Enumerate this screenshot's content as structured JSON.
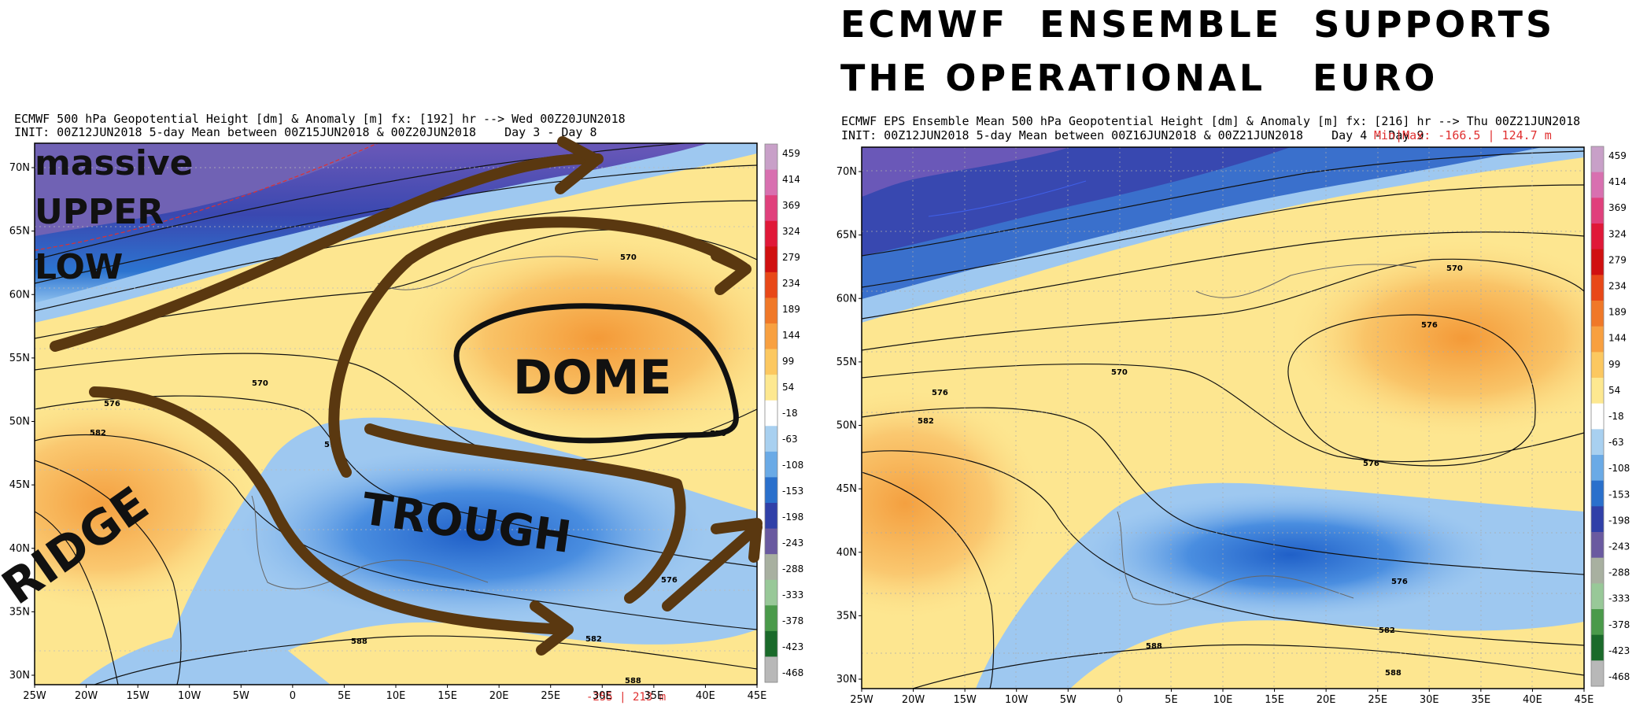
{
  "headline": {
    "line1": "ECMWF  ENSEMBLE  SUPPORTS",
    "line2": "THE OPERATIONAL   EURO"
  },
  "left_map": {
    "header_line1": "ECMWF 500 hPa Geopotential Height [dm] & Anomaly [m] fx: [192] hr --> Wed 00Z20JUN2018",
    "header_line2": "INIT: 00Z12JUN2018 5-day Mean between 00Z15JUN2018 & 00Z20JUN2018    Day 3 - Day 8",
    "minmax": "-255 | 213 m",
    "contour_labels": [
      "570",
      "570",
      "576",
      "576",
      "576",
      "582",
      "582",
      "588",
      "588",
      "570"
    ],
    "annotations": {
      "massive": "massive",
      "upper": "UPPER",
      "low": "LOW",
      "dome": "DOME",
      "trough": "TROUGH",
      "ridge": "RIDGE"
    }
  },
  "right_map": {
    "header_line1": "ECMWF EPS Ensemble Mean 500 hPa Geopotential Height [dm] & Anomaly [m] fx: [216] hr --> Thu 00Z21JUN2018",
    "header_line2": "INIT: 00Z12JUN2018 5-day Mean between 00Z16JUN2018 & 00Z21JUN2018    Day 4 - Day 9",
    "minmax": "Min|Max: -166.5 | 124.7 m",
    "contour_labels": [
      "570",
      "576",
      "576",
      "576",
      "582",
      "576",
      "582",
      "588",
      "588",
      "570"
    ]
  },
  "axes": {
    "lat_labels": [
      "70N",
      "65N",
      "60N",
      "55N",
      "50N",
      "45N",
      "40N",
      "35N",
      "30N"
    ],
    "lon_labels": [
      "25W",
      "20W",
      "15W",
      "10W",
      "5W",
      "0",
      "5E",
      "10E",
      "15E",
      "20E",
      "25E",
      "30E",
      "35E",
      "40E",
      "45E"
    ]
  },
  "colorbar": {
    "labels": [
      "459",
      "414",
      "369",
      "324",
      "279",
      "234",
      "189",
      "144",
      "99",
      "54",
      "-18",
      "-63",
      "-108",
      "-153",
      "-198",
      "-243",
      "-288",
      "-333",
      "-378",
      "-423",
      "-468"
    ],
    "colors": [
      "#c8a0c8",
      "#d870b0",
      "#e0407c",
      "#e01838",
      "#d01010",
      "#e84818",
      "#f07828",
      "#f8a040",
      "#fcc860",
      "#fde890",
      "#ffffff",
      "#a8d0f0",
      "#6aaae6",
      "#2a70cc",
      "#3040a8",
      "#6a5aa0",
      "#a8b0a0",
      "#98c898",
      "#4a9a4a",
      "#1a6a2a",
      "#b8b8b8"
    ]
  },
  "colors": {
    "arrow_brown": "#5a3810",
    "anomaly_red": "#e03030"
  }
}
